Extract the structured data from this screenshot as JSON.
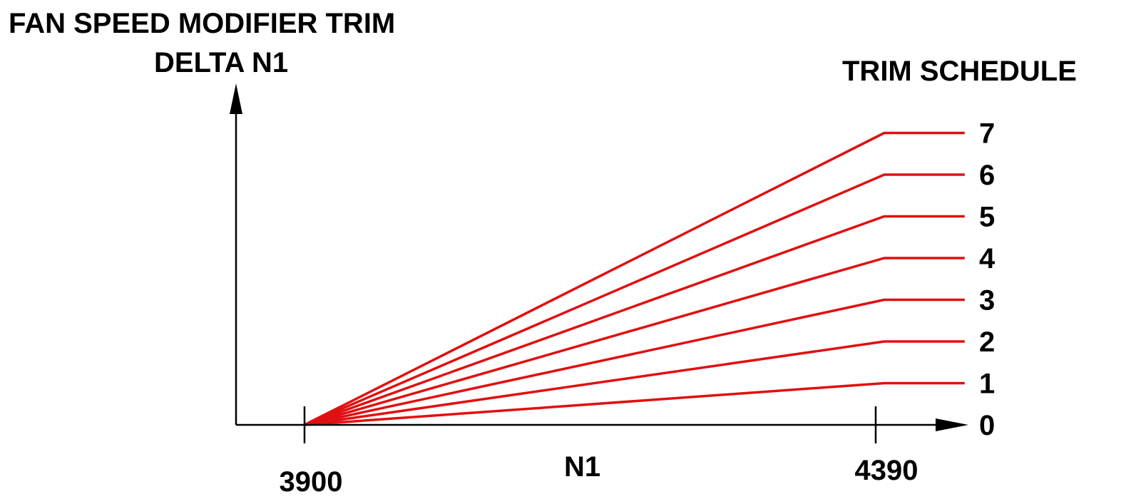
{
  "chart_data": {
    "type": "line",
    "title": "FAN SPEED MODIFIER TRIM",
    "ylabel": "DELTA N1",
    "xlabel": "N1",
    "legend_title": "TRIM SCHEDULE",
    "x_ticks": [
      {
        "value": 3900,
        "label": "3900"
      },
      {
        "value": 4390,
        "label": "4390"
      }
    ],
    "xlim": [
      3840,
      4470
    ],
    "ylim": [
      0,
      7
    ],
    "line_color": "#e01010",
    "series": [
      {
        "name": "0",
        "points": [
          [
            3900,
            0
          ],
          [
            4470,
            0
          ]
        ]
      },
      {
        "name": "1",
        "points": [
          [
            3900,
            0
          ],
          [
            4390,
            1
          ],
          [
            4458,
            1
          ]
        ]
      },
      {
        "name": "2",
        "points": [
          [
            3900,
            0
          ],
          [
            4390,
            2
          ],
          [
            4458,
            2
          ]
        ]
      },
      {
        "name": "3",
        "points": [
          [
            3900,
            0
          ],
          [
            4390,
            3
          ],
          [
            4458,
            3
          ]
        ]
      },
      {
        "name": "4",
        "points": [
          [
            3900,
            0
          ],
          [
            4390,
            4
          ],
          [
            4458,
            4
          ]
        ]
      },
      {
        "name": "5",
        "points": [
          [
            3900,
            0
          ],
          [
            4390,
            5
          ],
          [
            4458,
            5
          ]
        ]
      },
      {
        "name": "6",
        "points": [
          [
            3900,
            0
          ],
          [
            4390,
            6
          ],
          [
            4458,
            6
          ]
        ]
      },
      {
        "name": "7",
        "points": [
          [
            3900,
            0
          ],
          [
            4390,
            7
          ],
          [
            4458,
            7
          ]
        ]
      }
    ]
  }
}
